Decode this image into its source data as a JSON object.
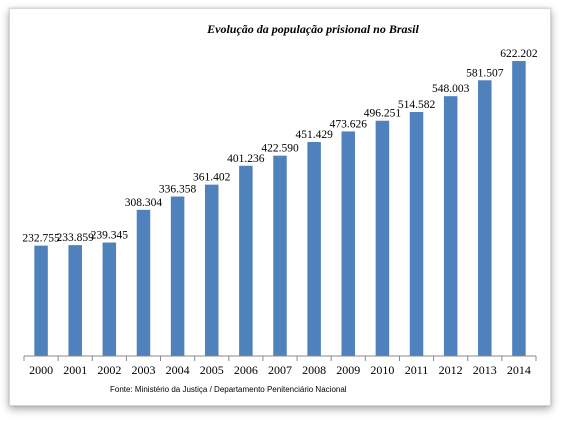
{
  "chart_data": {
    "type": "bar",
    "title": "Evolução da população prisional no Brasil",
    "categories": [
      "2000",
      "2001",
      "2002",
      "2003",
      "2004",
      "2005",
      "2006",
      "2007",
      "2008",
      "2009",
      "2010",
      "2011",
      "2012",
      "2013",
      "2014"
    ],
    "values": [
      232755,
      233859,
      239345,
      308304,
      336358,
      361402,
      401236,
      422590,
      451429,
      473626,
      496251,
      514582,
      548003,
      581507,
      622202
    ],
    "data_labels": [
      "232.755",
      "233.859",
      "239.345",
      "308.304",
      "336.358",
      "361.402",
      "401.236",
      "422.590",
      "451.429",
      "473.626",
      "496.251",
      "514.582",
      "548.003",
      "581.507",
      "622.202"
    ],
    "xlabel": "",
    "ylabel": "",
    "ylim": [
      0,
      640000
    ],
    "grid": false,
    "legend": "none",
    "source": "Fonte: Ministério da Justiça / Departamento Penitenciário Nacional",
    "colors": {
      "bar": "#4f81bd",
      "axis": "#888888",
      "text": "#000000"
    }
  }
}
